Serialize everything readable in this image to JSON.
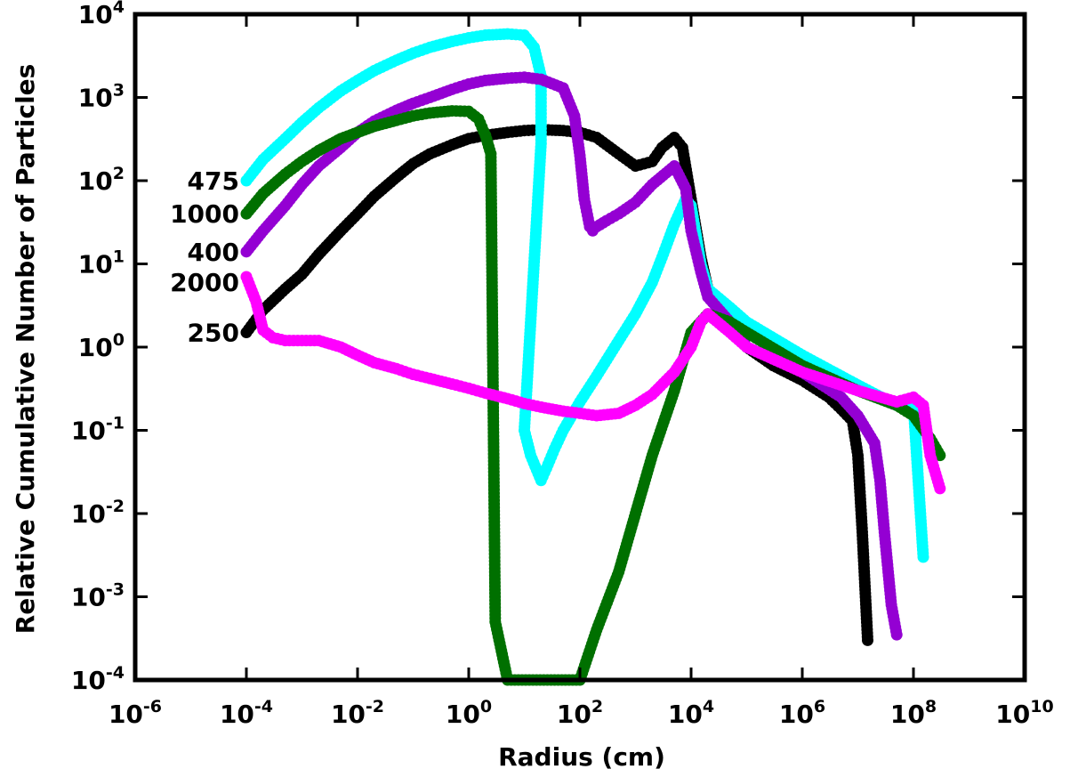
{
  "chart_data": {
    "type": "scatter",
    "title": "",
    "xlabel": "Radius (cm)",
    "ylabel": "Relative Cumulative Number of Particles",
    "xscale": "log",
    "yscale": "log",
    "xlim": [
      1e-06,
      10000000000.0
    ],
    "ylim": [
      0.0001,
      10000.0
    ],
    "x_ticks": [
      {
        "base": "10",
        "exp": "-6",
        "value": 1e-06
      },
      {
        "base": "10",
        "exp": "-4",
        "value": 0.0001
      },
      {
        "base": "10",
        "exp": "-2",
        "value": 0.01
      },
      {
        "base": "10",
        "exp": "0",
        "value": 1
      },
      {
        "base": "10",
        "exp": "2",
        "value": 100.0
      },
      {
        "base": "10",
        "exp": "4",
        "value": 10000.0
      },
      {
        "base": "10",
        "exp": "6",
        "value": 1000000.0
      },
      {
        "base": "10",
        "exp": "8",
        "value": 100000000.0
      },
      {
        "base": "10",
        "exp": "10",
        "value": 10000000000.0
      }
    ],
    "y_ticks": [
      {
        "base": "10",
        "exp": "-4",
        "value": 0.0001
      },
      {
        "base": "10",
        "exp": "-3",
        "value": 0.001
      },
      {
        "base": "10",
        "exp": "-2",
        "value": 0.01
      },
      {
        "base": "10",
        "exp": "-1",
        "value": 0.1
      },
      {
        "base": "10",
        "exp": "0",
        "value": 1
      },
      {
        "base": "10",
        "exp": "1",
        "value": 10
      },
      {
        "base": "10",
        "exp": "2",
        "value": 100
      },
      {
        "base": "10",
        "exp": "3",
        "value": 1000
      },
      {
        "base": "10",
        "exp": "4",
        "value": 10000
      }
    ],
    "grid": false,
    "legend": "none",
    "annotations": [
      {
        "text": "475",
        "x": 0.0001,
        "y": 100
      },
      {
        "text": "1000",
        "x": 0.0001,
        "y": 40
      },
      {
        "text": "400",
        "x": 0.0001,
        "y": 14
      },
      {
        "text": "2000",
        "x": 0.0001,
        "y": 6
      },
      {
        "text": "250",
        "x": 0.0001,
        "y": 1.5
      }
    ],
    "series": [
      {
        "color": "#000000",
        "x": [
          0.0001,
          0.0002,
          0.0005,
          0.001,
          0.002,
          0.005,
          0.01,
          0.02,
          0.05,
          0.1,
          0.2,
          0.5,
          1,
          2,
          5,
          10,
          20,
          50,
          100,
          200,
          500,
          1000,
          2000,
          3000,
          5000,
          7000,
          10000,
          15000,
          20000,
          50000,
          100000,
          300000,
          1000000,
          3000000,
          5000000,
          8000000,
          10000000,
          12000000,
          15000000
        ],
        "y": [
          1.5,
          2.8,
          5,
          7.5,
          13,
          25,
          40,
          65,
          110,
          160,
          210,
          270,
          320,
          350,
          380,
          400,
          410,
          400,
          380,
          330,
          210,
          150,
          170,
          250,
          330,
          250,
          60,
          12,
          5,
          2,
          1,
          0.6,
          0.4,
          0.25,
          0.18,
          0.13,
          0.05,
          0.006,
          0.0003
        ]
      },
      {
        "color": "#00ffff",
        "x": [
          0.0001,
          0.0002,
          0.0005,
          0.001,
          0.002,
          0.005,
          0.01,
          0.02,
          0.05,
          0.1,
          0.2,
          0.5,
          1,
          2,
          5,
          10,
          15,
          20,
          20,
          10,
          13,
          20,
          25,
          35,
          50,
          100,
          200,
          500,
          1000,
          2000,
          3000,
          5000,
          8000,
          10000,
          15000,
          20000,
          50000,
          100000,
          1000000,
          10000000,
          50000000,
          100000000,
          120000000,
          150000000
        ],
        "y": [
          100,
          180,
          320,
          500,
          750,
          1200,
          1600,
          2100,
          2800,
          3400,
          4000,
          4700,
          5200,
          5600,
          5800,
          5600,
          4000,
          1800,
          280,
          0.1,
          0.05,
          0.025,
          0.035,
          0.06,
          0.1,
          0.22,
          0.45,
          1.2,
          2.5,
          6,
          12,
          30,
          60,
          50,
          10,
          5,
          3,
          2,
          0.8,
          0.35,
          0.2,
          0.2,
          0.03,
          0.003
        ]
      },
      {
        "color": "#9400d3",
        "x": [
          0.0001,
          0.0002,
          0.0005,
          0.001,
          0.002,
          0.005,
          0.01,
          0.02,
          0.05,
          0.1,
          0.2,
          0.5,
          1,
          2,
          5,
          10,
          20,
          50,
          80,
          100,
          120,
          150,
          170,
          200,
          300,
          500,
          1000,
          2000,
          5000,
          8000,
          10000,
          15000,
          20000,
          50000,
          100000,
          1000000,
          5000000,
          10000000,
          20000000,
          25000000,
          30000000,
          40000000,
          50000000
        ],
        "y": [
          14,
          25,
          50,
          90,
          150,
          250,
          380,
          520,
          700,
          850,
          1000,
          1250,
          1450,
          1600,
          1700,
          1750,
          1650,
          1300,
          600,
          200,
          60,
          28,
          25,
          28,
          33,
          40,
          55,
          90,
          150,
          80,
          25,
          8,
          4,
          2,
          1,
          0.5,
          0.25,
          0.15,
          0.07,
          0.025,
          0.006,
          0.0008,
          0.00035
        ]
      },
      {
        "color": "#007000",
        "x": [
          0.0001,
          0.0002,
          0.0005,
          0.001,
          0.002,
          0.005,
          0.01,
          0.02,
          0.05,
          0.1,
          0.2,
          0.5,
          1,
          1.5,
          2,
          2.5,
          3,
          5,
          100,
          200,
          500,
          1000,
          2000,
          5000,
          10000,
          20000,
          50000,
          100000,
          1000000,
          10000000,
          50000000,
          100000000,
          200000000,
          300000000
        ],
        "y": [
          40,
          70,
          120,
          170,
          230,
          320,
          380,
          450,
          530,
          600,
          650,
          690,
          680,
          550,
          350,
          210,
          0.0005,
          0.0001,
          0.0001,
          0.0004,
          0.002,
          0.01,
          0.05,
          0.3,
          1.5,
          2.5,
          2,
          1.5,
          0.6,
          0.3,
          0.2,
          0.15,
          0.08,
          0.05
        ]
      },
      {
        "color": "#ff00ff",
        "x": [
          0.0001,
          0.00015,
          0.0002,
          0.0003,
          0.0005,
          0.001,
          0.002,
          0.005,
          0.01,
          0.02,
          0.05,
          0.1,
          0.2,
          0.5,
          1,
          2,
          5,
          10,
          20,
          50,
          100,
          200,
          500,
          1000,
          2000,
          5000,
          10000,
          15000,
          20000,
          50000,
          100000,
          1000000,
          10000000,
          50000000,
          100000000,
          150000000,
          200000000,
          300000000
        ],
        "y": [
          7,
          3.5,
          1.6,
          1.3,
          1.2,
          1.2,
          1.2,
          1.0,
          0.8,
          0.65,
          0.55,
          0.47,
          0.42,
          0.36,
          0.32,
          0.28,
          0.24,
          0.21,
          0.19,
          0.17,
          0.16,
          0.15,
          0.16,
          0.2,
          0.27,
          0.5,
          1.0,
          2.0,
          2.5,
          1.5,
          1.0,
          0.5,
          0.3,
          0.22,
          0.25,
          0.2,
          0.05,
          0.02
        ]
      }
    ]
  }
}
